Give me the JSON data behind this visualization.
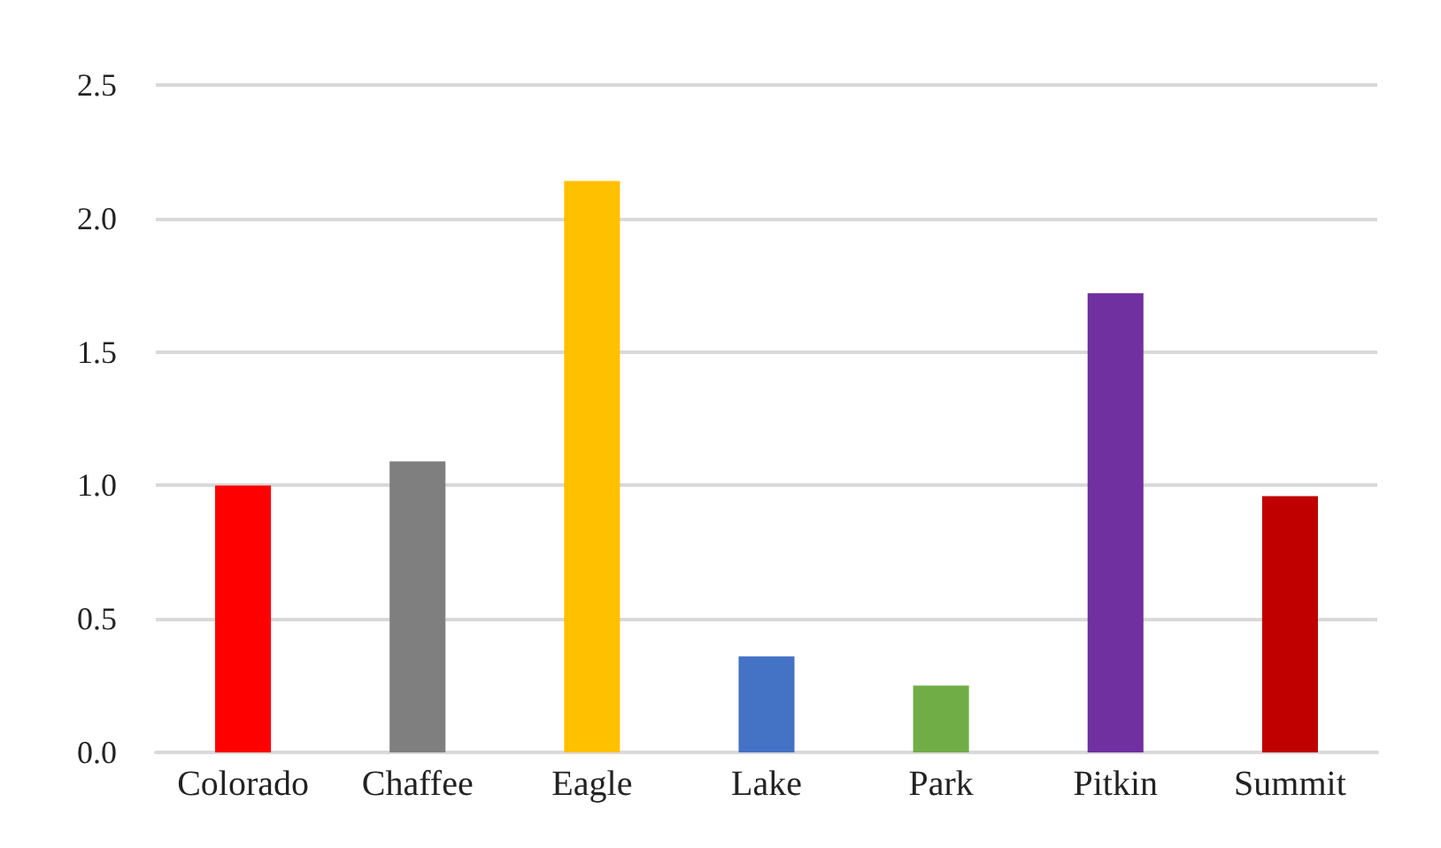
{
  "chart_data": {
    "type": "bar",
    "categories": [
      "Colorado",
      "Chaffee",
      "Eagle",
      "Lake",
      "Park",
      "Pitkin",
      "Summit"
    ],
    "values": [
      1.0,
      1.09,
      2.14,
      0.36,
      0.25,
      1.72,
      0.96
    ],
    "colors": [
      "#ff0000",
      "#7f7f7f",
      "#ffc000",
      "#4472c4",
      "#70ad47",
      "#7030a0",
      "#c00000"
    ],
    "ylim": [
      0,
      2.5
    ],
    "yticks": [
      {
        "value": 0,
        "label": "0.0"
      },
      {
        "value": 0.5,
        "label": "0.5"
      },
      {
        "value": 1,
        "label": "1.0"
      },
      {
        "value": 1.5,
        "label": "1.5"
      },
      {
        "value": 2,
        "label": "2.0"
      },
      {
        "value": 2.5,
        "label": "2.5"
      }
    ],
    "grid": "y"
  }
}
